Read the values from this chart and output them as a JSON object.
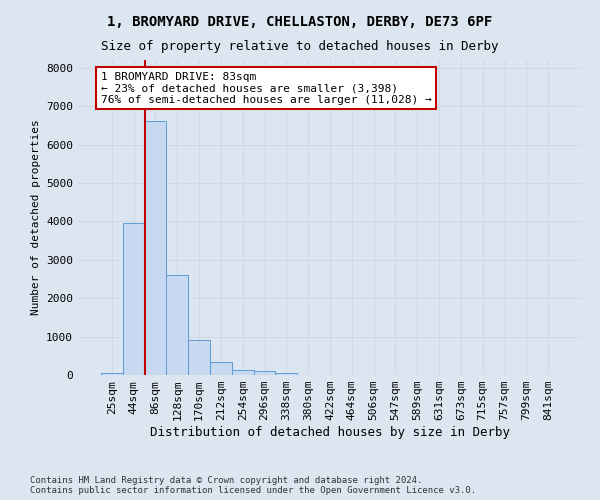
{
  "title_line1": "1, BROMYARD DRIVE, CHELLASTON, DERBY, DE73 6PF",
  "title_line2": "Size of property relative to detached houses in Derby",
  "xlabel": "Distribution of detached houses by size in Derby",
  "ylabel": "Number of detached properties",
  "footer": "Contains HM Land Registry data © Crown copyright and database right 2024.\nContains public sector information licensed under the Open Government Licence v3.0.",
  "bin_labels": [
    "25sqm",
    "44sqm",
    "86sqm",
    "128sqm",
    "170sqm",
    "212sqm",
    "254sqm",
    "296sqm",
    "338sqm",
    "380sqm",
    "422sqm",
    "464sqm",
    "506sqm",
    "547sqm",
    "589sqm",
    "631sqm",
    "673sqm",
    "715sqm",
    "757sqm",
    "799sqm",
    "841sqm"
  ],
  "bar_values": [
    50,
    3950,
    6600,
    2600,
    900,
    350,
    130,
    100,
    60,
    0,
    0,
    0,
    0,
    0,
    0,
    0,
    0,
    0,
    0,
    0,
    0
  ],
  "bar_color": "#c6d9f0",
  "bar_edge_color": "#5b9bd5",
  "vline_x": 1.5,
  "vline_color": "#c00000",
  "annotation_text": "1 BROMYARD DRIVE: 83sqm\n← 23% of detached houses are smaller (3,398)\n76% of semi-detached houses are larger (11,028) →",
  "annotation_box_color": "#ffffff",
  "annotation_box_edge_color": "#c00000",
  "ylim": [
    0,
    8200
  ],
  "yticks": [
    0,
    1000,
    2000,
    3000,
    4000,
    5000,
    6000,
    7000,
    8000
  ],
  "grid_color": "#d0d8e8",
  "bg_color": "#dce6f1",
  "title_fontsize": 10,
  "subtitle_fontsize": 9,
  "xlabel_fontsize": 9,
  "ylabel_fontsize": 8,
  "tick_fontsize": 8,
  "annot_fontsize": 8,
  "footer_fontsize": 6.5
}
